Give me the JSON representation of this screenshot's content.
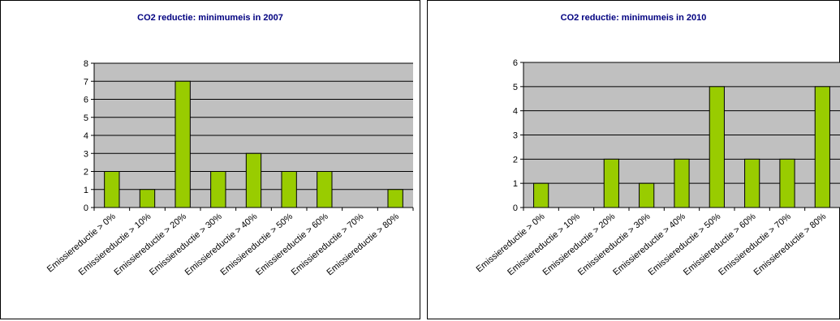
{
  "chart_data": [
    {
      "type": "bar",
      "title": "CO2 reductie: minimumeis in 2007",
      "categories": [
        "Emissiereductie > 0%",
        "Emissiereductie > 10%",
        "Emissiereductie > 20%",
        "Emissiereductie > 30%",
        "Emissiereductie > 40%",
        "Emissiereductie > 50%",
        "Emissiereductie > 60%",
        "Emissiereductie > 70%",
        "Emissiereductie > 80%"
      ],
      "values": [
        2,
        1,
        7,
        2,
        3,
        2,
        2,
        0,
        1
      ],
      "ylim": [
        0,
        8
      ],
      "yticks": [
        0,
        1,
        2,
        3,
        4,
        5,
        6,
        7,
        8
      ],
      "grid": true,
      "legend": "none",
      "colors": {
        "bar": "#99CC00",
        "plot_bg": "#C0C0C0",
        "title": "#000080"
      }
    },
    {
      "type": "bar",
      "title": "CO2 reductie: minimumeis in 2010",
      "categories": [
        "Emissiereductie > 0%",
        "Emissiereductie > 10%",
        "Emissiereductie > 20%",
        "Emissiereductie > 30%",
        "Emissiereductie > 40%",
        "Emissiereductie > 50%",
        "Emissiereductie > 60%",
        "Emissiereductie > 70%",
        "Emissiereductie > 80%"
      ],
      "values": [
        1,
        0,
        2,
        1,
        2,
        5,
        2,
        2,
        5
      ],
      "ylim": [
        0,
        6
      ],
      "yticks": [
        0,
        1,
        2,
        3,
        4,
        5,
        6
      ],
      "grid": true,
      "legend": "none",
      "colors": {
        "bar": "#99CC00",
        "plot_bg": "#C0C0C0",
        "title": "#000080"
      }
    }
  ]
}
